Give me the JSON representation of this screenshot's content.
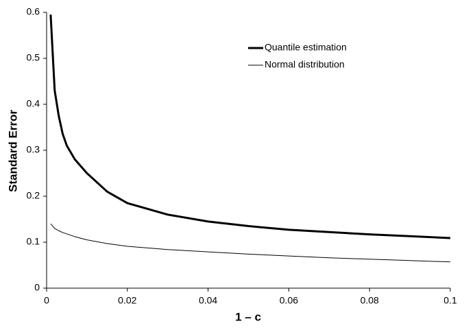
{
  "chart_data": {
    "type": "line",
    "xlabel": "1 – c",
    "ylabel": "Standard Error",
    "x": [
      0.001,
      0.002,
      0.003,
      0.004,
      0.005,
      0.007,
      0.01,
      0.015,
      0.02,
      0.03,
      0.04,
      0.05,
      0.06,
      0.07,
      0.08,
      0.09,
      0.1
    ],
    "series": [
      {
        "name": "Quantile estimation",
        "color": "#000000",
        "values": [
          0.595,
          0.43,
          0.375,
          0.335,
          0.31,
          0.28,
          0.25,
          0.21,
          0.185,
          0.16,
          0.145,
          0.135,
          0.127,
          0.122,
          0.117,
          0.113,
          0.109
        ]
      },
      {
        "name": "Normal distribution",
        "color": "#000000",
        "values": [
          0.14,
          0.13,
          0.125,
          0.121,
          0.118,
          0.112,
          0.105,
          0.097,
          0.091,
          0.084,
          0.079,
          0.074,
          0.07,
          0.066,
          0.063,
          0.06,
          0.057
        ]
      }
    ],
    "xlim": [
      0,
      0.1
    ],
    "xticks": [
      0,
      0.02,
      0.04,
      0.06,
      0.08,
      0.1
    ],
    "ylim": [
      0,
      0.6
    ],
    "yticks": [
      0,
      0.1,
      0.2,
      0.3,
      0.4,
      0.5,
      0.6
    ],
    "grid": false,
    "legend": "upper-right"
  }
}
